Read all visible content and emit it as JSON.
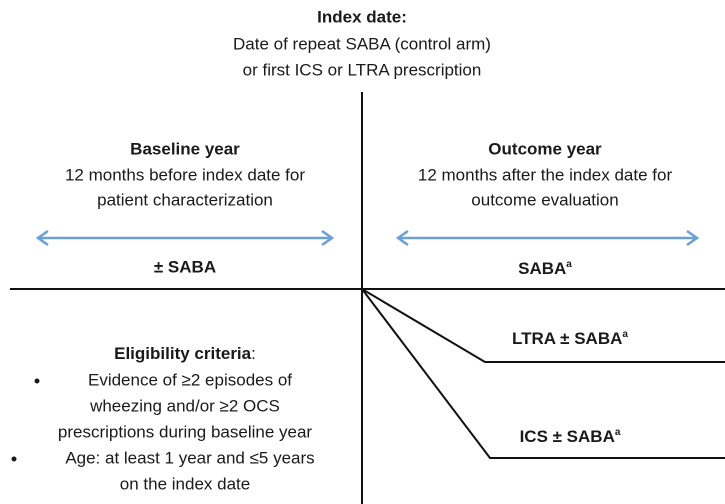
{
  "index_date": {
    "title": "Index date:",
    "lines": [
      "Date of repeat SABA (control arm)",
      "or first ICS or LTRA prescription"
    ]
  },
  "baseline": {
    "title": "Baseline year",
    "lines": [
      "12 months before index date for",
      "patient characterization"
    ],
    "arm": "± SABA"
  },
  "outcome": {
    "title": "Outcome year",
    "lines": [
      "12 months after the index date for",
      "outcome evaluation"
    ]
  },
  "arms": [
    {
      "label": "SABA",
      "note": "a"
    },
    {
      "label": "LTRA ± SABA",
      "note": "a"
    },
    {
      "label": "ICS ± SABA",
      "note": "a"
    }
  ],
  "eligibility": {
    "title": "Eligibility criteria",
    "colon": ":",
    "items": [
      [
        "Evidence of  ≥2 episodes of",
        "wheezing and/or ≥2 OCS",
        "prescriptions during baseline year"
      ],
      [
        "Age: at least 1 year and ≤5 years",
        "on the index date"
      ]
    ]
  }
}
